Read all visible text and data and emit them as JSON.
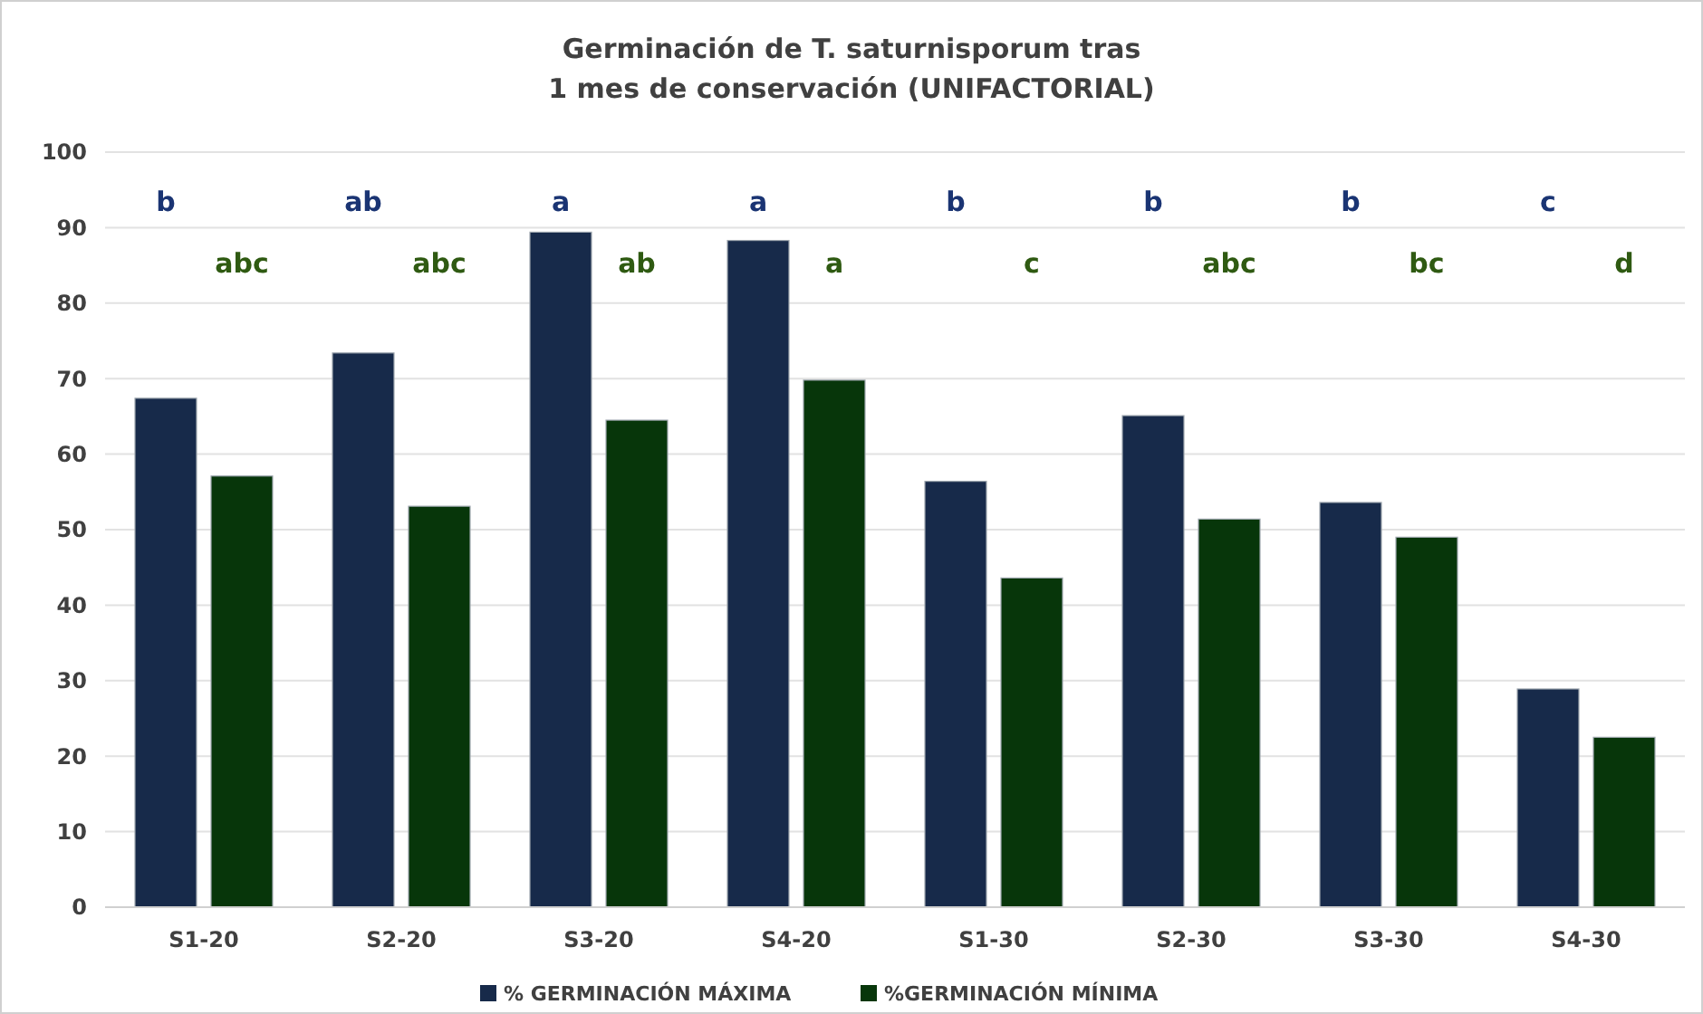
{
  "chart_data": {
    "type": "bar",
    "title": "Germinación de T. saturnisporum tras\n1 mes de conservación (UNIFACTORIAL)",
    "categories": [
      "S1-20",
      "S2-20",
      "S3-20",
      "S4-20",
      "S1-30",
      "S2-30",
      "S3-30",
      "S4-30"
    ],
    "series": [
      {
        "name": "% GERMINACIÓN MÁXIMA",
        "color": "#172a4a",
        "values": [
          67.4,
          73.4,
          89.4,
          88.3,
          56.4,
          65.1,
          53.6,
          28.9
        ]
      },
      {
        "name": "%GERMINACIÓN MÍNIMA",
        "color": "#07360a",
        "values": [
          57.1,
          53.1,
          64.5,
          69.8,
          43.6,
          51.4,
          49.0,
          22.5
        ]
      }
    ],
    "ylim": [
      0,
      100
    ],
    "yticks": [
      0,
      10,
      20,
      30,
      40,
      50,
      60,
      70,
      80,
      90,
      100
    ],
    "grid": "y",
    "legend": "bottom",
    "annotations": [
      "b",
      "abc",
      "ab",
      "abc",
      "a",
      "ab",
      "a",
      "a",
      "b",
      "c",
      "b",
      "abc",
      "b",
      "bc",
      "c",
      "d"
    ]
  }
}
